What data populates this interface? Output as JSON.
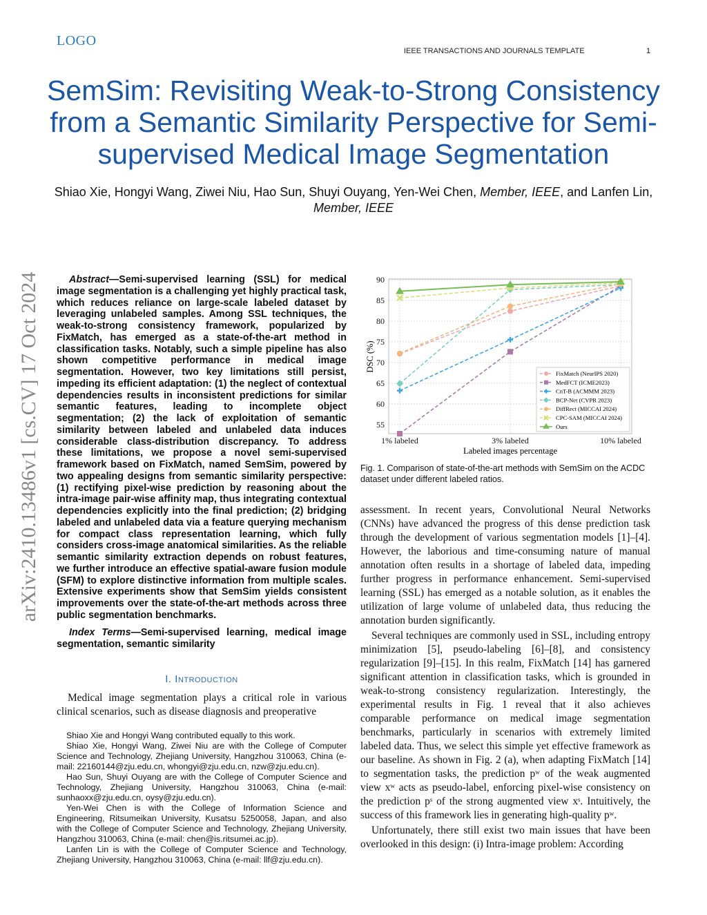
{
  "header": {
    "logo": "LOGO",
    "running_head": "IEEE TRANSACTIONS AND JOURNALS TEMPLATE",
    "page_number": "1"
  },
  "title": "SemSim: Revisiting Weak-to-Strong Consistency from a Semantic Similarity Perspective for Semi-supervised Medical Image Segmentation",
  "authors": {
    "names": "Shiao Xie, Hongyi Wang, Ziwei Niu, Hao Sun, Shuyi Ouyang, Yen-Wei Chen, ",
    "member1": "Member, IEEE",
    "mid": ", and Lanfen Lin, ",
    "member2": "Member, IEEE"
  },
  "arxiv_stamp": "arXiv:2410.13486v1  [cs.CV]  17 Oct 2024",
  "abstract": {
    "lead": "Abstract—",
    "text": "Semi-supervised learning (SSL) for medical image segmentation is a challenging yet highly practical task, which reduces reliance on large-scale labeled dataset by leveraging unlabeled samples. Among SSL techniques, the weak-to-strong consistency framework, popularized by FixMatch, has emerged as a state-of-the-art method in classification tasks. Notably, such a simple pipeline has also shown competitive performance in medical image segmentation. However, two key limitations still persist, impeding its efficient adaptation: (1) the neglect of contextual dependencies results in inconsistent predictions for similar semantic features, leading to incomplete object segmentation; (2) the lack of exploitation of semantic similarity between labeled and unlabeled data induces considerable class-distribution discrepancy. To address these limitations, we propose a novel semi-supervised framework based on FixMatch, named SemSim, powered by two appealing designs from semantic similarity perspective: (1) rectifying pixel-wise prediction by reasoning about the intra-image pair-wise affinity map, thus integrating contextual dependencies explicitly into the final prediction; (2) bridging labeled and unlabeled data via a feature querying mechanism for compact class representation learning, which fully considers cross-image anatomical similarities. As the reliable semantic similarity extraction depends on robust features, we further introduce an effective spatial-aware fusion module (SFM) to explore distinctive information from multiple scales. Extensive experiments show that SemSim yields consistent improvements over the state-of-the-art methods across three public segmentation benchmarks."
  },
  "index_terms": {
    "lead": "Index Terms—",
    "text": "Semi-supervised learning, medical image segmentation, semantic similarity"
  },
  "section": {
    "number": "I. ",
    "title": "Introduction"
  },
  "intro": "Medical image segmentation plays a critical role in various clinical scenarios, such as disease diagnosis and preoperative",
  "footnotes": [
    "Shiao Xie and Hongyi Wang contributed equally to this work.",
    "Shiao Xie, Hongyi Wang, Ziwei Niu are with the College of Computer Science and Technology, Zhejiang University, Hangzhou 310063, China (e-mail: 22160144@zju.edu.cn, whongyi@zju.edu.cn, nzw@zju.edu.cn).",
    "Hao Sun, Shuyi Ouyang are with the College of Computer Science and Technology, Zhejiang University, Hangzhou 310063, China (e-mail: sunhaoxx@zju.edu.cn, oysy@zju.edu.cn).",
    "Yen-Wei Chen is with the College of Information Science and Engineering, Ritsumeikan University, Kusatsu 5250058, Japan, and also with the College of Computer Science and Technology, Zhejiang University, Hangzhou 310063, China (e-mail: chen@is.ritsumei.ac.jp).",
    "Lanfen Lin is with the College of Computer Science and Technology, Zhejiang University, Hangzhou 310063, China (e-mail: llf@zju.edu.cn)."
  ],
  "figure": {
    "caption": "Fig. 1.   Comparison of state-of-the-art methods with SemSim on the ACDC dataset under different labeled ratios."
  },
  "right_body": [
    "assessment. In recent years, Convolutional Neural Networks (CNNs) have advanced the progress of this dense prediction task through the development of various segmentation models [1]–[4]. However, the laborious and time-consuming nature of manual annotation often results in a shortage of labeled data, impeding further progress in performance enhancement. Semi-supervised learning (SSL) has emerged as a notable solution, as it enables the utilization of large volume of unlabeled data, thus reducing the annotation burden significantly.",
    "Several techniques are commonly used in SSL, including entropy minimization [5], pseudo-labeling [6]–[8], and consistency regularization [9]–[15]. In this realm, FixMatch [14] has garnered significant attention in classification tasks, which is grounded in weak-to-strong consistency regularization. Interestingly, the experimental results in Fig. 1 reveal that it also achieves comparable performance on medical image segmentation benchmarks, particularly in scenarios with extremely limited labeled data. Thus, we select this simple yet effective framework as our baseline. As shown in Fig. 2 (a), when adapting FixMatch [14] to segmentation tasks, the prediction pʷ of the weak augmented view xʷ acts as pseudo-label, enforcing pixel-wise consistency on the prediction pˢ of the strong augmented view xˢ. Intuitively, the success of this framework lies in generating high-quality pʷ.",
    "Unfortunately, there still exist two main issues that have been overlooked in this design: (i) Intra-image problem: According"
  ],
  "chart_data": {
    "type": "line",
    "title": "",
    "xlabel": "Labeled images percentage",
    "ylabel": "DSC (%)",
    "categories": [
      "1% labeled",
      "3% labeled",
      "10% labeled"
    ],
    "yticks": [
      55,
      60,
      65,
      70,
      75,
      80,
      85,
      90
    ],
    "ylim": [
      52.8,
      90
    ],
    "grid": true,
    "legend_position": "bottom-right",
    "series": [
      {
        "name": "FixMatch (NeurIPS 2020)",
        "values": [
          72.1,
          82.4,
          88.5
        ],
        "color": "#f2a7a9",
        "marker": "circle",
        "dash": true
      },
      {
        "name": "MedFCT (ICME2023)",
        "values": [
          52.8,
          72.6,
          88.5
        ],
        "color": "#b07aa6",
        "marker": "square",
        "dash": true
      },
      {
        "name": "CnT-B (ACMMM 2023)",
        "values": [
          63.2,
          75.5,
          88.0
        ],
        "color": "#3aa6e6",
        "marker": "plus",
        "dash": true
      },
      {
        "name": "BCP-Net (CVPR 2023)",
        "values": [
          64.9,
          87.6,
          88.8
        ],
        "color": "#7ccfbe",
        "marker": "diamond",
        "dash": true
      },
      {
        "name": "DiffRect (MICCAI 2024)",
        "values": [
          72.2,
          83.6,
          89.0
        ],
        "color": "#f4b778",
        "marker": "circle",
        "dash": true
      },
      {
        "name": "CPC-SAM (MICCAI 2024)",
        "values": [
          85.6,
          88.0,
          89.2
        ],
        "color": "#d7df7a",
        "marker": "x",
        "dash": true
      },
      {
        "name": "Ours",
        "values": [
          87.2,
          88.8,
          89.5
        ],
        "color": "#78bd55",
        "marker": "triangle",
        "dash": false
      }
    ]
  }
}
